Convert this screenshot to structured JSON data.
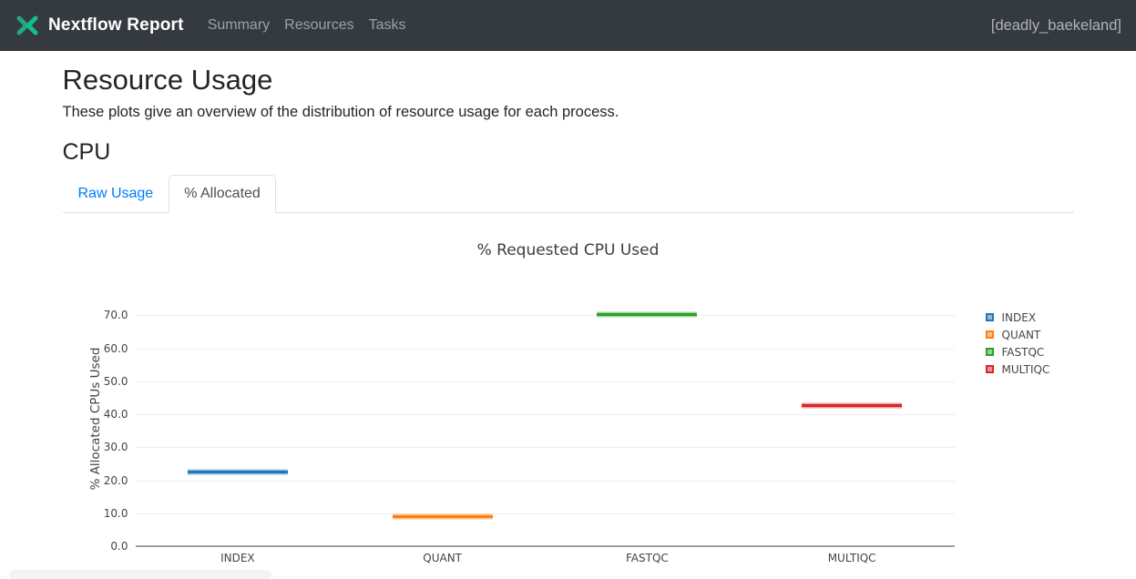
{
  "header": {
    "brand": "Nextflow Report",
    "nav_items": [
      {
        "label": "Summary"
      },
      {
        "label": "Resources"
      },
      {
        "label": "Tasks"
      }
    ],
    "run_name": "[deadly_baekeland]",
    "colors": {
      "bg": "#343a40",
      "logo_left": "#26a583",
      "logo_right": "#12bf8c",
      "link_blue": "#007bff"
    }
  },
  "main": {
    "title": "Resource Usage",
    "subtitle": "These plots give an overview of the distribution of resource usage for each process.",
    "section_heading": "CPU",
    "tabs": [
      {
        "label": "Raw Usage",
        "active": false
      },
      {
        "label": "% Allocated",
        "active": true
      }
    ]
  },
  "chart_data": {
    "type": "box",
    "title": "% Requested CPU Used",
    "xlabel": "",
    "ylabel": "% Allocated CPUs Used",
    "categories": [
      "INDEX",
      "QUANT",
      "FASTQC",
      "MULTIQC"
    ],
    "series": [
      {
        "name": "INDEX",
        "median": 22.6,
        "color": "#1f77b4"
      },
      {
        "name": "QUANT",
        "median": 9.1,
        "color": "#ff7f0e"
      },
      {
        "name": "FASTQC",
        "median": 70.1,
        "color": "#2ca02c"
      },
      {
        "name": "MULTIQC",
        "median": 42.7,
        "color": "#d62728"
      }
    ],
    "yticks": [
      0,
      10,
      20,
      30,
      40,
      50,
      60,
      70
    ],
    "ytick_labels": [
      "0.0",
      "10.0",
      "20.0",
      "30.0",
      "40.0",
      "50.0",
      "60.0",
      "70.0"
    ],
    "ylim": [
      0,
      77.2
    ],
    "grid": true,
    "legend_position": "right"
  }
}
